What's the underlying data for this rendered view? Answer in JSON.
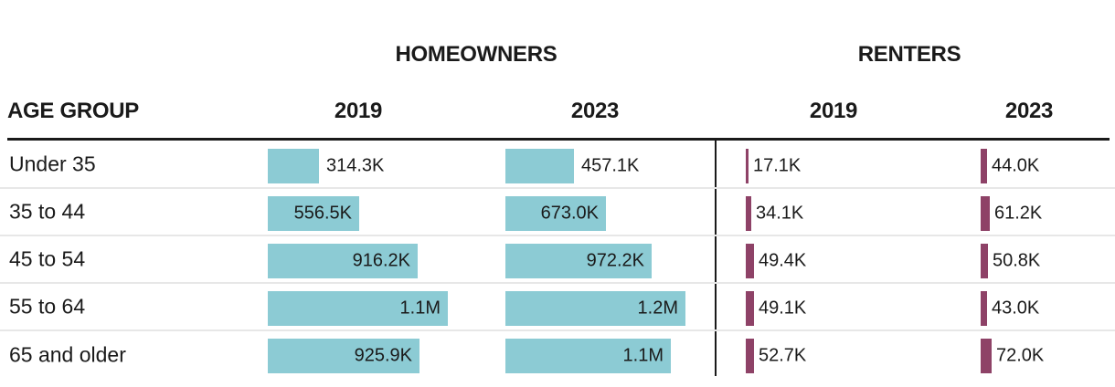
{
  "header": {
    "homeowners_group": "HOMEOWNERS",
    "renters_group": "RENTERS",
    "age_group": "AGE GROUP",
    "homeowners_2019": "2019",
    "homeowners_2023": "2023",
    "renters_2019": "2019",
    "renters_2023": "2023"
  },
  "colors": {
    "homeowner_bar": "#8ccbd4",
    "renter_bar": "#8e4267",
    "text": "#1a1a1a",
    "header_rule": "#1a1a1a",
    "row_divider": "#e7e7e7"
  },
  "chart_data": {
    "type": "bar",
    "orientation": "horizontal",
    "categories": [
      "Under 35",
      "35 to 44",
      "45 to 54",
      "55 to 64",
      "65 and older"
    ],
    "value_unit": "thousands (K = thousand, M = million)",
    "series": [
      {
        "group": "Homeowners",
        "year": "2019",
        "values": [
          314.3,
          556.5,
          916.2,
          1100,
          925.9
        ],
        "labels": [
          "314.3K",
          "556.5K",
          "916.2K",
          "1.1M",
          "925.9K"
        ]
      },
      {
        "group": "Homeowners",
        "year": "2023",
        "values": [
          457.1,
          673.0,
          972.2,
          1200,
          1100
        ],
        "labels": [
          "457.1K",
          "673.0K",
          "972.2K",
          "1.2M",
          "1.1M"
        ]
      },
      {
        "group": "Renters",
        "year": "2019",
        "values": [
          17.1,
          34.1,
          49.4,
          49.1,
          52.7
        ],
        "labels": [
          "17.1K",
          "34.1K",
          "49.4K",
          "49.1K",
          "52.7K"
        ]
      },
      {
        "group": "Renters",
        "year": "2023",
        "values": [
          44.0,
          61.2,
          50.8,
          43.0,
          72.0
        ],
        "labels": [
          "44.0K",
          "61.2K",
          "50.8K",
          "43.0K",
          "72.0K"
        ]
      }
    ],
    "layout": {
      "grid": "off",
      "row_dividers": true,
      "column_scaling": "each year column scaled so that year's max homeowner value fills the column width; renter bars share the same year's scale",
      "value_labels": "inside right edge of wide bars, outside to the right of narrow bars",
      "vertical_rule_between_homeowners_and_renters": true
    }
  }
}
